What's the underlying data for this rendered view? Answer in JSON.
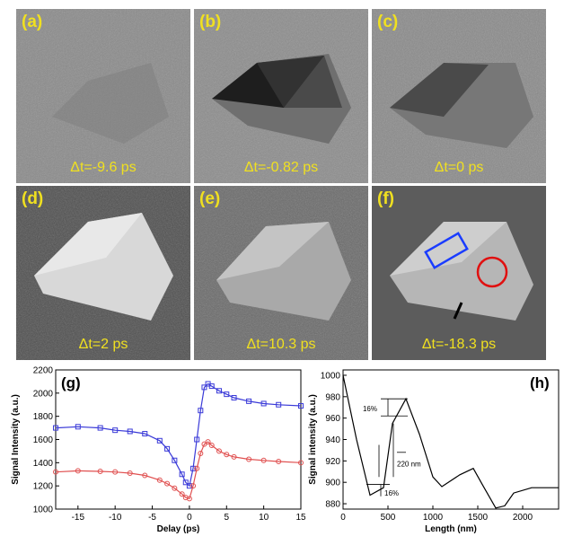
{
  "panels": [
    {
      "label": "(a)",
      "delta": "Δt=-9.6 ps"
    },
    {
      "label": "(b)",
      "delta": "Δt=-0.82 ps"
    },
    {
      "label": "(c)",
      "delta": "Δt=0 ps"
    },
    {
      "label": "(d)",
      "delta": "Δt=2 ps"
    },
    {
      "label": "(e)",
      "delta": "Δt=10.3 ps"
    },
    {
      "label": "(f)",
      "delta": "Δt=-18.3 ps"
    }
  ],
  "colors": {
    "label_yellow": "#f0e020",
    "blue_series": "#3a3ad8",
    "red_series": "#e05050",
    "roi_blue": "#1a3cff",
    "roi_red": "#e01010"
  },
  "chart_data": [
    {
      "panel_label": "(g)",
      "type": "line",
      "xlabel": "Delay (ps)",
      "ylabel": "Signal Intensity (a.u.)",
      "xlim": [
        -18,
        15
      ],
      "ylim": [
        1000,
        2200
      ],
      "xticks": [
        -15,
        -10,
        -5,
        0,
        5,
        10,
        15
      ],
      "yticks": [
        1000,
        1200,
        1400,
        1600,
        1800,
        2000,
        2200
      ],
      "series": [
        {
          "color": "#3a3ad8",
          "marker": "square",
          "x": [
            -18,
            -15,
            -12,
            -10,
            -8,
            -6,
            -4,
            -3,
            -2,
            -1,
            -0.5,
            0,
            0.5,
            1,
            1.5,
            2,
            2.5,
            3,
            4,
            5,
            6,
            8,
            10,
            12,
            15
          ],
          "y": [
            1700,
            1710,
            1700,
            1680,
            1670,
            1650,
            1590,
            1520,
            1420,
            1300,
            1230,
            1200,
            1350,
            1600,
            1850,
            2050,
            2080,
            2060,
            2020,
            1990,
            1960,
            1930,
            1910,
            1900,
            1890
          ]
        },
        {
          "color": "#e05050",
          "marker": "circle",
          "x": [
            -18,
            -15,
            -12,
            -10,
            -8,
            -6,
            -4,
            -3,
            -2,
            -1,
            -0.5,
            0,
            0.5,
            1,
            1.5,
            2,
            2.5,
            3,
            4,
            5,
            6,
            8,
            10,
            12,
            15
          ],
          "y": [
            1320,
            1330,
            1325,
            1320,
            1310,
            1290,
            1250,
            1220,
            1180,
            1130,
            1100,
            1090,
            1200,
            1350,
            1480,
            1560,
            1580,
            1550,
            1500,
            1470,
            1450,
            1430,
            1420,
            1410,
            1400
          ]
        }
      ]
    },
    {
      "panel_label": "(h)",
      "type": "line",
      "xlabel": "Length (nm)",
      "ylabel": "Signal intensity (a.u.)",
      "xlim": [
        0,
        2400
      ],
      "ylim": [
        875,
        1005
      ],
      "xticks": [
        0,
        500,
        1000,
        1500,
        2000
      ],
      "yticks": [
        880,
        900,
        920,
        940,
        960,
        980,
        1000
      ],
      "series": [
        {
          "color": "#000000",
          "x": [
            0,
            150,
            300,
            450,
            550,
            700,
            850,
            1000,
            1100,
            1300,
            1450,
            1550,
            1700,
            1800,
            1900,
            2100,
            2400
          ],
          "y": [
            1000,
            940,
            888,
            895,
            955,
            978,
            945,
            905,
            896,
            907,
            913,
            898,
            876,
            878,
            890,
            895,
            895
          ]
        }
      ],
      "annotations": [
        "16%",
        "220 nm",
        "16%"
      ]
    }
  ]
}
